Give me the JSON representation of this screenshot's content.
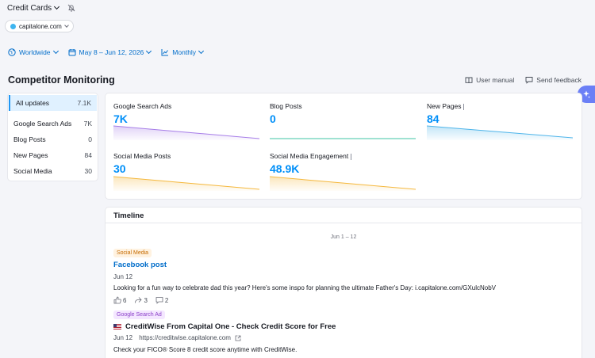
{
  "header": {
    "project_title": "Credit Cards",
    "domain": "capitalone.com"
  },
  "filters": {
    "region": "Worldwide",
    "date_range": "May 8 – Jun 12, 2026",
    "period": "Monthly"
  },
  "page": {
    "title": "Competitor Monitoring",
    "user_manual": "User manual",
    "send_feedback": "Send feedback"
  },
  "sidebar": {
    "items": [
      {
        "label": "All updates",
        "count": "7.1K"
      },
      {
        "label": "Google Search Ads",
        "count": "7K"
      },
      {
        "label": "Blog Posts",
        "count": "0"
      },
      {
        "label": "New Pages",
        "count": "84"
      },
      {
        "label": "Social Media",
        "count": "30"
      }
    ]
  },
  "metrics": [
    {
      "label": "Google Search Ads",
      "value": "7K",
      "color": "#a77ee8"
    },
    {
      "label": "Blog Posts",
      "value": "0",
      "color": "#3fc6a6"
    },
    {
      "label": "New Pages",
      "value": "84",
      "color": "#4fb5ea"
    },
    {
      "label": "Social Media Posts",
      "value": "30",
      "color": "#f5b83d"
    },
    {
      "label": "Social Media Engagement",
      "value": "48.9K",
      "color": "#f5b83d"
    }
  ],
  "timeline": {
    "title": "Timeline",
    "range": "Jun 1 – 12",
    "posts": [
      {
        "badge": "Social Media",
        "title": "Facebook post",
        "date": "Jun 12",
        "text": "Looking for a fun way to celebrate dad this year? Here's some inspo for planning the ultimate Father's Day: i.capitalone.com/GXulcNobV",
        "likes": "6",
        "shares": "3",
        "comments": "2"
      },
      {
        "badge": "Google Search Ad",
        "title": "CreditWise From Capital One - Check Credit Score for Free",
        "date": "Jun 12",
        "url": "https://creditwise.capitalone.com",
        "text": "Check your FICO® Score 8 credit score anytime with CreditWise."
      }
    ]
  }
}
